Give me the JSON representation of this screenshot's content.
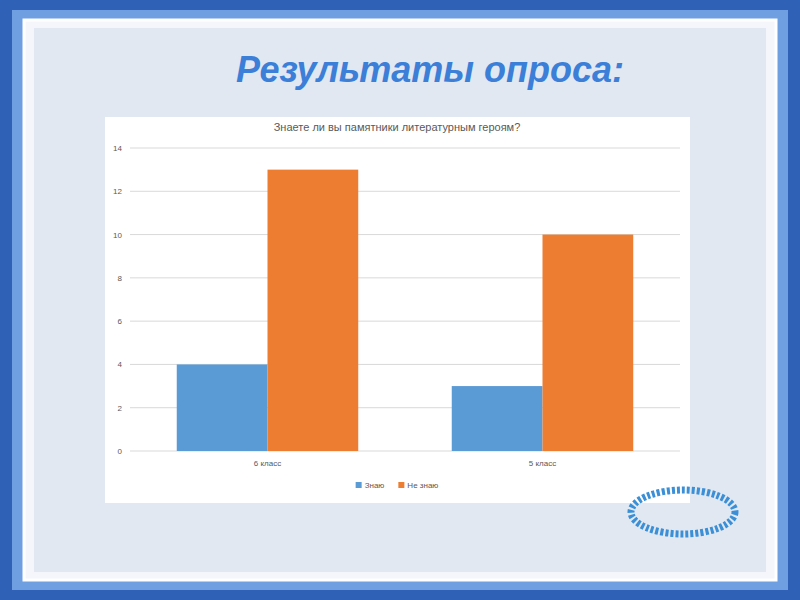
{
  "slide": {
    "heading": "Результаты опроса:"
  },
  "chart_data": {
    "type": "bar",
    "title": "Знаете ли вы памятники литературным героям?",
    "categories": [
      "6 класс",
      "5 класс"
    ],
    "series": [
      {
        "name": "Знаю",
        "color": "#5b9bd5",
        "values": [
          4,
          3
        ]
      },
      {
        "name": "Не знаю",
        "color": "#ed7d31",
        "values": [
          13,
          10
        ]
      }
    ],
    "ylim": [
      0,
      14
    ],
    "yticks": [
      0,
      2,
      4,
      6,
      8,
      10,
      12,
      14
    ],
    "grid": true,
    "legend": "bottom"
  }
}
